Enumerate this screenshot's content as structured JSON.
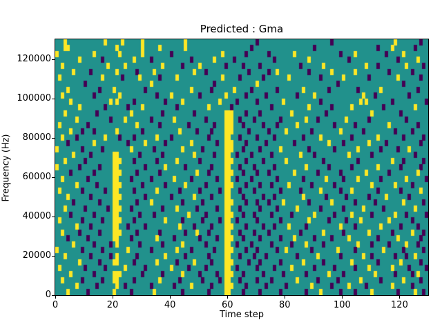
{
  "figure": {
    "title": "Predicted : Gma",
    "xlabel": "Time step",
    "ylabel": "Frequency (Hz)"
  },
  "chart_data": {
    "type": "heatmap",
    "title": "Predicted : Gma",
    "xlabel": "Time step",
    "ylabel": "Frequency (Hz)",
    "x_range": [
      0,
      130
    ],
    "y_range": [
      0,
      130000
    ],
    "x_ticks": [
      0,
      20,
      40,
      60,
      80,
      100,
      120
    ],
    "y_ticks": [
      0,
      20000,
      40000,
      60000,
      80000,
      100000,
      120000
    ],
    "grid": false,
    "legend": "none",
    "n_cols": 130,
    "n_rows": 43,
    "colors": {
      "mid": "#21918c",
      "low": "#440154",
      "high": "#fde725"
    },
    "cell_encoding": {
      ".": "mid (teal)",
      "Y": "high (yellow)",
      "D": "low (dark purple)"
    },
    "rows_top_to_bottom": [
      [
        "...Y......",
        ".......Y..",
        "...Y......",
        "Y.........",
        ".....Y....",
        "..........",
        "..........",
        "D.........",
        "..........",
        "......D...",
        "..........",
        "........Y.",
        ".......D.."
      ],
      [
        "...YY.....",
        "..........",
        ".Y........",
        "Y.....Y...",
        ".....Y....",
        "..........",
        "........D.",
        "..........",
        "..........",
        "D.........",
        "..........",
        "..D....Y..",
        ".....D...."
      ],
      [
        "Y.........",
        "...Y......",
        "..Y.......",
        "Y.........",
        "D.........",
        "........Y.",
        "......D...",
        "....D.....",
        "...Y......",
        ".........D",
        "....Y.....",
        ".....D....",
        ".Y........"
      ],
      [
        "........Y.",
        "......D...",
        ".......Y..",
        "...D......",
        ".......D..",
        ".....Y....",
        "..D.......",
        "......D...",
        "........Y.",
        "..........",
        "..D.......",
        ".........D",
        "......Y..."
      ],
      [
        "..Y.......",
        "........Y.",
        "....Y.....",
        ".......Y..",
        "....D.....",
        "Y........D",
        ".....D....",
        ".D........",
        ".....D....",
        "...Y......",
        "........Y.",
        "..D.......",
        "..Y.....D."
      ],
      [
        "......Y...",
        "..D.......",
        ".Y......D.",
        "....Y.....",
        "........Y.",
        "..D.......",
        ".......D..",
        "....D..Y..",
        "........D.",
        "......Y...",
        "....Y.....",
        "......D...",
        "....D....."
      ],
      [
        ".Y........",
        "......Y...",
        "...D.....Y",
        "......D...",
        "..Y.......",
        "........Y.",
        "....D.....",
        "..D.......",
        ".Y........",
        "..D.......",
        "Y........D",
        ".........Y",
        ".......D.."
      ],
      [
        "..........",
        "D.........",
        "..........",
        "...Y......",
        "..........",
        ".....D....",
        "..........",
        "Y.........",
        "..........",
        "........D.",
        "..........",
        "..........",
        ".D........"
      ],
      [
        "....Y.....",
        ".....D....",
        "Y.........",
        ".D........",
        ".......Y..",
        "....D.....",
        "..Y.....D.",
        ".......D..",
        "......Y...",
        ".....D....",
        ".....D....",
        "...Y......",
        "......D..."
      ],
      [
        "..Y.......",
        "...D......",
        "..Y.......",
        ".....D....",
        "Y.........",
        "D........Y",
        "......D...",
        "...D......",
        "....D.....",
        "Y.........",
        ".......Y..",
        ".D........",
        "...D......"
      ],
      [
        ".....Y....",
        ".........Y",
        ".Y.....D..",
        "........D.",
        "....Y.....",
        ".......Y..",
        "...D......",
        "D........Y",
        "..........",
        "..D.......",
        "......Y.Y.",
        ".......D..",
        ".........D"
      ],
      [
        "........Y.",
        ".......D..",
        ".....D....",
        "Y.........",
        "..D.......",
        "...Y......",
        ".D........",
        ".....D....",
        "........Y.",
        "......D...",
        "...Y......",
        "....D.....",
        ".....Y...."
      ],
      [
        "...Y......",
        "....D.....",
        "......Y...",
        ".......D..",
        "........D.",
        ".........Y",
        "YY....D...",
        ".D........",
        "..Y.......",
        "....D.....",
        "..........",
        "Y.........",
        "D........."
      ],
      [
        ".......Y..",
        ".........D",
        "....Y.....",
        "...D......",
        ".Y........",
        "..D......Y",
        "YY..D....D",
        "........D.",
        ".......Y..",
        ".D........",
        ".Y.......D",
        "..........",
        "..D......."
      ],
      [
        ".Y........",
        ".D........",
        "........Y.",
        "......D...",
        "......D...",
        ".....D...Y",
        "YY...D....",
        "..D....D..",
        "....Y.....",
        ".......D..",
        "....D.....",
        "......Y...",
        "......D..."
      ],
      [
        ".....Y...D",
        "...D......",
        ".Y........",
        "D.........",
        "...Y.....D",
        "....D....Y",
        "YY.....D..",
        "....D.....",
        "Y........D",
        ".........Y",
        ".......D..",
        "........D.",
        "....D....."
      ],
      [
        "..Y....D..",
        ".......Y..",
        "..D....D..",
        ".....Y....",
        "D.........",
        "...D.....Y",
        "Y...D.....",
        "D.....D...",
        "......D...",
        "..Y.......",
        "...D......",
        "..Y.......",
        ".D......D."
      ],
      [
        "....D.....",
        "...Y......",
        ".....D....",
        ".Y......D.",
        ".......Y..",
        "......D..Y",
        "YY....D...",
        "...D......",
        "...D......",
        ".....Y....",
        "D........Y",
        ".....D....",
        ".......D.."
      ],
      [
        "Y........D",
        "......D...",
        "......Y...",
        "....D.....",
        "....Y.....",
        ".D.......Y",
        "YY...D....",
        ".D......Y.",
        "........D.",
        ".......D..",
        ".....Y....",
        "...D.....D",
        "...Y......"
      ],
      [
        "......Y...",
        "..D.......",
        "YY.......D",
        ".......D..",
        "........Y.",
        ".....D...Y",
        "Y..D....D.",
        ".....D....",
        ".....Y....",
        "D.........",
        "..Y.......",
        "D.........",
        ".....D...."
      ],
      [
        "...Y......",
        "D.........",
        "YYY....D..",
        ".....D....",
        "..Y.......",
        "D........Y",
        "YY....D...",
        "..D.......",
        "Y.........",
        "...D......",
        ".....D....",
        ".......Y..",
        ".D......D."
      ],
      [
        "Y.......D.",
        ".....D....",
        "YY........",
        ".D......Y.",
        ".....D....",
        "....D....Y",
        "Y...D....D",
        "......D...",
        ".......Y..",
        ".....D....",
        "...D......",
        "..Y.......",
        "D......D.."
      ],
      [
        ".....D....",
        "...D......",
        "YYY.....D.",
        "......D...",
        ".........Y",
        "...D.....Y",
        "YY...D....",
        "D...D.....",
        "...Y......",
        ".D.......D",
        "........Y.",
        "......D...",
        "......Y..."
      ],
      [
        "..Y.......",
        ".D........",
        "YY....D...",
        "...D......",
        ".Y.....D..",
        "......D..Y",
        "Y..D....D.",
        ".......D..",
        "......D...",
        "....Y.....",
        "D....Y....",
        "...D......",
        "..Y......D"
      ],
      [
        ".......Y..",
        "....D.....",
        "YYY.......",
        "D.......D.",
        ".....Y....",
        "..D......Y",
        "YY....D...",
        ".D...D....",
        ".Y.......D",
        ".......D..",
        "..........",
        "Y.......Y.",
        "....D....."
      ],
      [
        ".Y.......D",
        ".......D..",
        "YY.....D..",
        ".....Y....",
        "...D......",
        "D......D.Y",
        "Y...D....D",
        "........D.",
        ".....D....",
        "..Y......D",
        "...Y......",
        "..D.......",
        "D......Y.."
      ],
      [
        "....Y.....",
        "..D.......",
        "YYY.......",
        ".D........",
        "D.......Y.",
        "....D....Y",
        "Y....D....",
        "..D...D...",
        "......Y...",
        "....D.....",
        ".D.......D",
        ".....Y....",
        "...D......"
      ],
      [
        "......D...",
        ".....D....",
        "YY......D.",
        "...Y......",
        "....D.....",
        ".D.......Y",
        "YY....D...",
        "D...D....Y",
        "........D.",
        "......Y...",
        "....D.....",
        ".D........",
        ".Y......D."
      ],
      [
        "...Y......",
        "D.......D.",
        "YYY...D...",
        ".......D..",
        "..Y......D",
        "......D..Y",
        "Y...D.....",
        ".D.....D..",
        "....Y.....",
        "..D.......",
        "D......Y..",
        "....D.....",
        ".....Y...."
      ],
      [
        ".....D....",
        "...D......",
        "YY.......D",
        "....D.....",
        "......Y...",
        "..D......Y",
        "YY...D...D",
        ".....D....",
        "..D.......",
        "Y......D..",
        "...Y......",
        "D.......Y.",
        "..D......D"
      ],
      [
        ".Y.......D",
        "......D...",
        "YYY....D..",
        "........Y.",
        "....D.....",
        ".D.....D.Y",
        "Y..D......",
        "D.......D.",
        "........Y.",
        ".....D....",
        ".D....Y...",
        "......Y...",
        "....D....."
      ],
      [
        ".......Y..",
        "..D.......",
        "YY...D....",
        ".D........",
        "...Y....D.",
        "....D....Y",
        "YY....D...",
        "..D...D...",
        ".Y.....D..",
        ".........Y",
        "....D.....",
        "...Y......",
        "D.....D..."
      ],
      [
        "..Y.....D.",
        ".....D....",
        "YYY.....D.",
        "......D...",
        ".....D...Y",
        "...D.....Y",
        "Y...D....D",
        "....D.....",
        ".....D....",
        "...Y......",
        "D........Y",
        ".......D..",
        "....Y...D."
      ],
      [
        "....D.....",
        ".D........",
        "YY....D...",
        ".....Y....",
        ".D........",
        "D.....D..Y",
        "YY...D....",
        ".D......D.",
        "...Y......",
        "D.....D...",
        "..Y.......",
        "..D......Y",
        ".......D.."
      ],
      [
        "......Y...",
        "...D.....D",
        ".Y.......D",
        ".......D..",
        "....Y.....",
        "..D......Y",
        "Y..D....D.",
        ".....D....",
        "..D....Y..",
        "...D......",
        ".....Y....",
        "D.....D...",
        "..Y...D..."
      ],
      [
        "Y........D",
        "......D...",
        ".....Y....",
        "...D......",
        "..Y....D..",
        ".....D...Y",
        "YY....D...",
        "D......D..",
        "Y........D",
        "........Y.",
        "....D.....",
        "....Y.....",
        ".D......D."
      ],
      [
        "...Y......",
        "..D......D",
        ".Y......D.",
        "........Y.",
        ".....D....",
        "...D.....Y",
        "Y...D....D",
        "...D......",
        "....D.....",
        ".Y.......D",
        ".......Y..",
        "D.......D.",
        "..D..Y...."
      ],
      [
        "........Y.",
        ".....D....",
        "YY.....D..",
        ".....Y....",
        "..D.....Y.",
        "....D....Y",
        "YY.....D..",
        ".D......D.",
        "......Y...",
        "...D......",
        "...Y......",
        "..D.......",
        "Y......D.."
      ],
      [
        ".Y........",
        "D......D..",
        "....Y.....",
        ".D........",
        "Y.....D...",
        "..D......Y",
        "Y..D......",
        "D.....D...",
        "..Y.......",
        "D......D..",
        "....D....Y",
        ".......Y..",
        "...D.....D"
      ],
      [
        ".....Y....",
        "...D......",
        "YYY.......",
        "D......D..",
        "....Y.....",
        "D.....D..Y",
        "YY...D....",
        "..D......D",
        ".......D..",
        ".....Y....",
        "D.........",
        ".Y......D.",
        "....D.Y..."
      ],
      [
        "..Y......D",
        "......D...",
        "YY.....D..",
        "......Y...",
        "...D......",
        ".D.....D.Y",
        "Y...D.....",
        "D....D....",
        "....Y.....",
        ".D......D.",
        "......Y...",
        "...D......",
        ".Y.....D.."
      ],
      [
        ".......Y..",
        "....D.....",
        ".Y..D.....",
        "...D......",
        ".D.....Y..",
        "....D....Y",
        "YY....D...",
        "...D......",
        "D........Y",
        "......D...",
        "..Y.....D.",
        ".......Y..",
        "....D....."
      ],
      [
        "....Y.....",
        ".D........",
        "Y.....D...",
        "....Y.....",
        "....D.....",
        "...D.....Y",
        "Y....D....",
        ".D......D.",
        ".......D..",
        "..Y......D",
        "....D.....",
        "Y........D",
        ".....Y..D."
      ]
    ]
  }
}
